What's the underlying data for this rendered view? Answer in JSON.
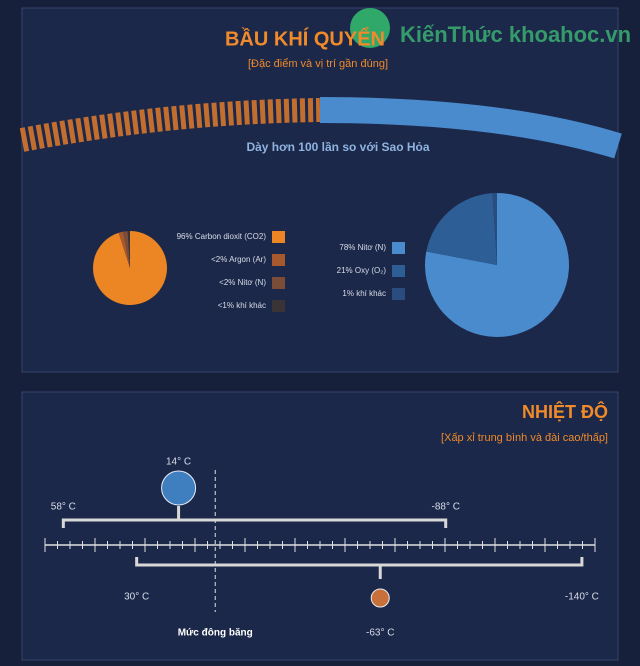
{
  "header": {
    "watermark": "KiếnThức khoahoc.vn"
  },
  "atmosphere": {
    "title": "BẦU KHÍ QUYỂN",
    "subtitle": "[Đặc điểm và vị trí gần đúng]",
    "note": "Dày hơn 100 lần so với Sao Hỏa"
  },
  "chart_data": [
    {
      "type": "pie",
      "categories": [
        "Carbon dioxit (CO2)",
        "Argon (Ar)",
        "Nitơ (N)",
        "khí khác"
      ],
      "values": [
        96,
        2,
        2,
        1
      ],
      "value_labels": [
        "96%",
        "<2%",
        "<2%",
        "<1%"
      ],
      "colors": [
        "#ec8524",
        "#a5592c",
        "#7b4c37",
        "#3b3436"
      ]
    },
    {
      "type": "pie",
      "categories": [
        "Nitơ (N)",
        "Oxy (O₂)",
        "khí khác"
      ],
      "values": [
        78,
        21,
        1
      ],
      "value_labels": [
        "78%",
        "21%",
        "1%"
      ],
      "colors": [
        "#4a8bcd",
        "#2e5e96",
        "#2a4c7e"
      ]
    },
    {
      "type": "range",
      "title": "NHIỆT ĐỘ",
      "subtitle": "[Xấp xỉ trung bình và đài cao/thấp]",
      "xlim": [
        65,
        -145
      ],
      "series": [
        {
          "color": "#3f7fc0",
          "values": [
            58,
            14,
            -88
          ],
          "value_labels": [
            "58° C",
            "14° C",
            "-88° C"
          ]
        },
        {
          "color": "#c8703a",
          "values": [
            30,
            -63,
            -140
          ],
          "value_labels": [
            "30° C",
            "-63° C",
            "-140° C"
          ]
        }
      ],
      "annotations": [
        {
          "value": 0,
          "label": "Mức đông băng"
        }
      ]
    }
  ]
}
